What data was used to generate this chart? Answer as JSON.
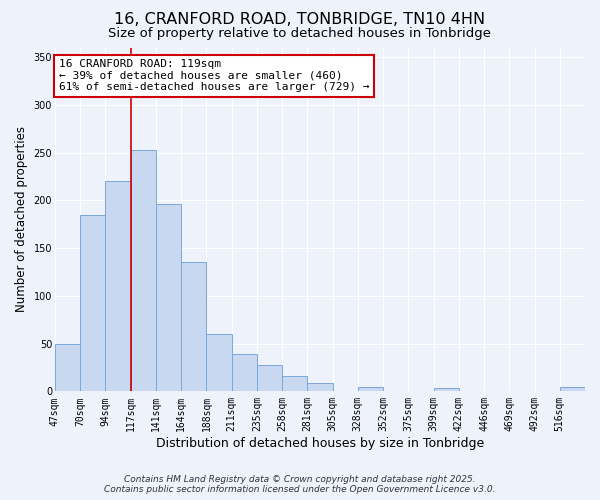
{
  "title": "16, CRANFORD ROAD, TONBRIDGE, TN10 4HN",
  "subtitle": "Size of property relative to detached houses in Tonbridge",
  "xlabel": "Distribution of detached houses by size in Tonbridge",
  "ylabel": "Number of detached properties",
  "footer_line1": "Contains HM Land Registry data © Crown copyright and database right 2025.",
  "footer_line2": "Contains public sector information licensed under the Open Government Licence v3.0.",
  "bin_labels": [
    "47sqm",
    "70sqm",
    "94sqm",
    "117sqm",
    "141sqm",
    "164sqm",
    "188sqm",
    "211sqm",
    "235sqm",
    "258sqm",
    "281sqm",
    "305sqm",
    "328sqm",
    "352sqm",
    "375sqm",
    "399sqm",
    "422sqm",
    "446sqm",
    "469sqm",
    "492sqm",
    "516sqm"
  ],
  "bar_values": [
    50,
    185,
    220,
    253,
    196,
    135,
    60,
    39,
    28,
    16,
    9,
    0,
    5,
    0,
    0,
    4,
    0,
    0,
    0,
    0,
    5
  ],
  "bar_color": "#c8d8f0",
  "bar_edgecolor": "#7aa8d8",
  "vline_x": 3,
  "vline_color": "#cc0000",
  "annotation_text": "16 CRANFORD ROAD: 119sqm\n← 39% of detached houses are smaller (460)\n61% of semi-detached houses are larger (729) →",
  "annotation_box_edgecolor": "#cc0000",
  "annotation_box_facecolor": "#ffffff",
  "ylim": [
    0,
    360
  ],
  "yticks": [
    0,
    50,
    100,
    150,
    200,
    250,
    300,
    350
  ],
  "background_color": "#eef2fb",
  "plot_background": "#eef2fb",
  "grid_color": "#ffffff",
  "title_fontsize": 11.5,
  "subtitle_fontsize": 9.5,
  "xlabel_fontsize": 9,
  "ylabel_fontsize": 8.5,
  "tick_fontsize": 7,
  "annotation_fontsize": 8,
  "footer_fontsize": 6.5
}
